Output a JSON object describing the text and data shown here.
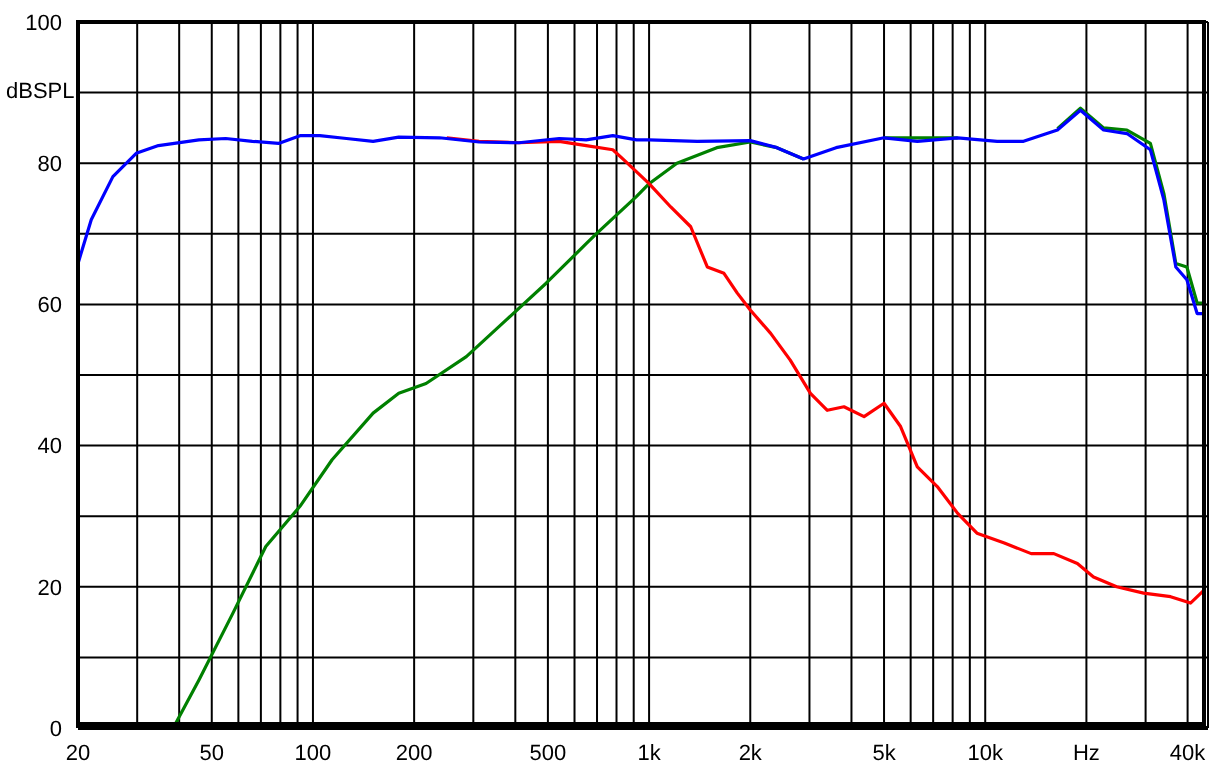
{
  "chart_data": {
    "type": "line",
    "ylabel": "dBSPL",
    "log": "x",
    "grid": true,
    "marker": "none",
    "line_style": "solid",
    "xlim": [
      20,
      46000
    ],
    "ylim": [
      0,
      100
    ],
    "xticks": [
      20,
      {
        "value": 30,
        "label": null
      },
      {
        "value": 40,
        "label": null
      },
      50,
      {
        "value": 60,
        "label": null
      },
      {
        "value": 70,
        "label": null
      },
      {
        "value": 80,
        "label": null
      },
      {
        "value": 90,
        "label": null
      },
      100,
      200,
      {
        "value": 300,
        "label": null
      },
      {
        "value": 400,
        "label": null
      },
      500,
      {
        "value": 600,
        "label": null
      },
      {
        "value": 700,
        "label": null
      },
      {
        "value": 800,
        "label": null
      },
      {
        "value": 900,
        "label": null
      },
      {
        "value": 1000,
        "label": "1k"
      },
      {
        "value": 2000,
        "label": "2k"
      },
      {
        "value": 3000,
        "label": null
      },
      {
        "value": 4000,
        "label": null
      },
      {
        "value": 5000,
        "label": "5k"
      },
      {
        "value": 6000,
        "label": null
      },
      {
        "value": 7000,
        "label": null
      },
      {
        "value": 8000,
        "label": null
      },
      {
        "value": 9000,
        "label": null
      },
      {
        "value": 10000,
        "label": "10k"
      },
      {
        "value": 20000,
        "label": "Hz"
      },
      {
        "value": 30000,
        "label": null
      },
      {
        "value": 40000,
        "label": "40k"
      }
    ],
    "yticks": [
      0,
      {
        "value": 10,
        "label": null
      },
      20,
      {
        "value": 30,
        "label": null
      },
      40,
      {
        "value": 50,
        "label": null
      },
      60,
      {
        "value": 70,
        "label": null
      },
      80,
      {
        "value": 90,
        "label": null
      },
      100
    ],
    "series": [
      {
        "color": "#008000",
        "x": [
          38.6,
          45.8,
          57.7,
          72.4,
          91.5,
          114,
          151,
          180,
          217,
          286,
          376,
          494,
          650,
          700,
          918,
          1000,
          1210,
          1590,
          2000,
          2400,
          2880,
          3600,
          5000,
          8280,
          13000,
          16400,
          19200,
          22500,
          26400,
          31000,
          34000,
          36900,
          39800,
          42700,
          44700
        ],
        "values": [
          0.2,
          6.8,
          16.2,
          25.7,
          31.4,
          38,
          44.6,
          47.4,
          48.8,
          52.6,
          57.8,
          63,
          68.6,
          70.1,
          75.3,
          77.1,
          80,
          82.2,
          83,
          82.2,
          80.6,
          null,
          83.6,
          83.6,
          null,
          84.9,
          87.8,
          85,
          84.7,
          82.8,
          75.7,
          65.8,
          65.3,
          60.2,
          60.2
        ]
      },
      {
        "color": "#ff0000",
        "x": [
          250,
          312,
          410,
          540,
          650,
          780,
          840,
          1000,
          1160,
          1330,
          1490,
          1670,
          1830,
          2000,
          2300,
          2630,
          3020,
          3390,
          3800,
          4360,
          5000,
          5600,
          6280,
          7200,
          8280,
          9450,
          11400,
          13700,
          16000,
          18800,
          21000,
          24600,
          29600,
          35600,
          40800,
          44700
        ],
        "values": [
          83.6,
          83.1,
          82.9,
          83.1,
          82.5,
          81.9,
          80.5,
          77.1,
          73.8,
          71,
          65.3,
          64.4,
          61.6,
          59.2,
          55.9,
          52.1,
          47.4,
          45,
          45.5,
          44.1,
          46,
          42.7,
          37,
          34.2,
          30.4,
          27.6,
          26.2,
          24.7,
          24.7,
          23.3,
          21.4,
          20,
          19.1,
          18.6,
          17.7,
          19.5
        ]
      },
      {
        "color": "#0000ff",
        "x": [
          20,
          21.9,
          25.4,
          29.8,
          34.7,
          45.8,
          55,
          66,
          79,
          91.5,
          104.8,
          125.8,
          151,
          180,
          238,
          312,
          410,
          540,
          650,
          780,
          918,
          1000,
          1390,
          2000,
          2400,
          2880,
          3600,
          5000,
          6280,
          8280,
          10850,
          13000,
          16400,
          19200,
          22500,
          26400,
          31000,
          34000,
          36900,
          39800,
          42700,
          44700
        ],
        "values": [
          65.8,
          72,
          78.1,
          81.4,
          82.5,
          83.3,
          83.5,
          83.1,
          82.8,
          83.9,
          83.9,
          83.5,
          83.1,
          83.7,
          83.6,
          83,
          82.9,
          83.5,
          83.3,
          83.9,
          83.3,
          83.3,
          83.1,
          83.2,
          82.2,
          80.6,
          82.2,
          83.6,
          83.1,
          83.6,
          83.1,
          83.1,
          84.7,
          87.5,
          84.7,
          84.2,
          81.9,
          74.8,
          65.3,
          63.5,
          58.7,
          58.7
        ]
      }
    ]
  }
}
